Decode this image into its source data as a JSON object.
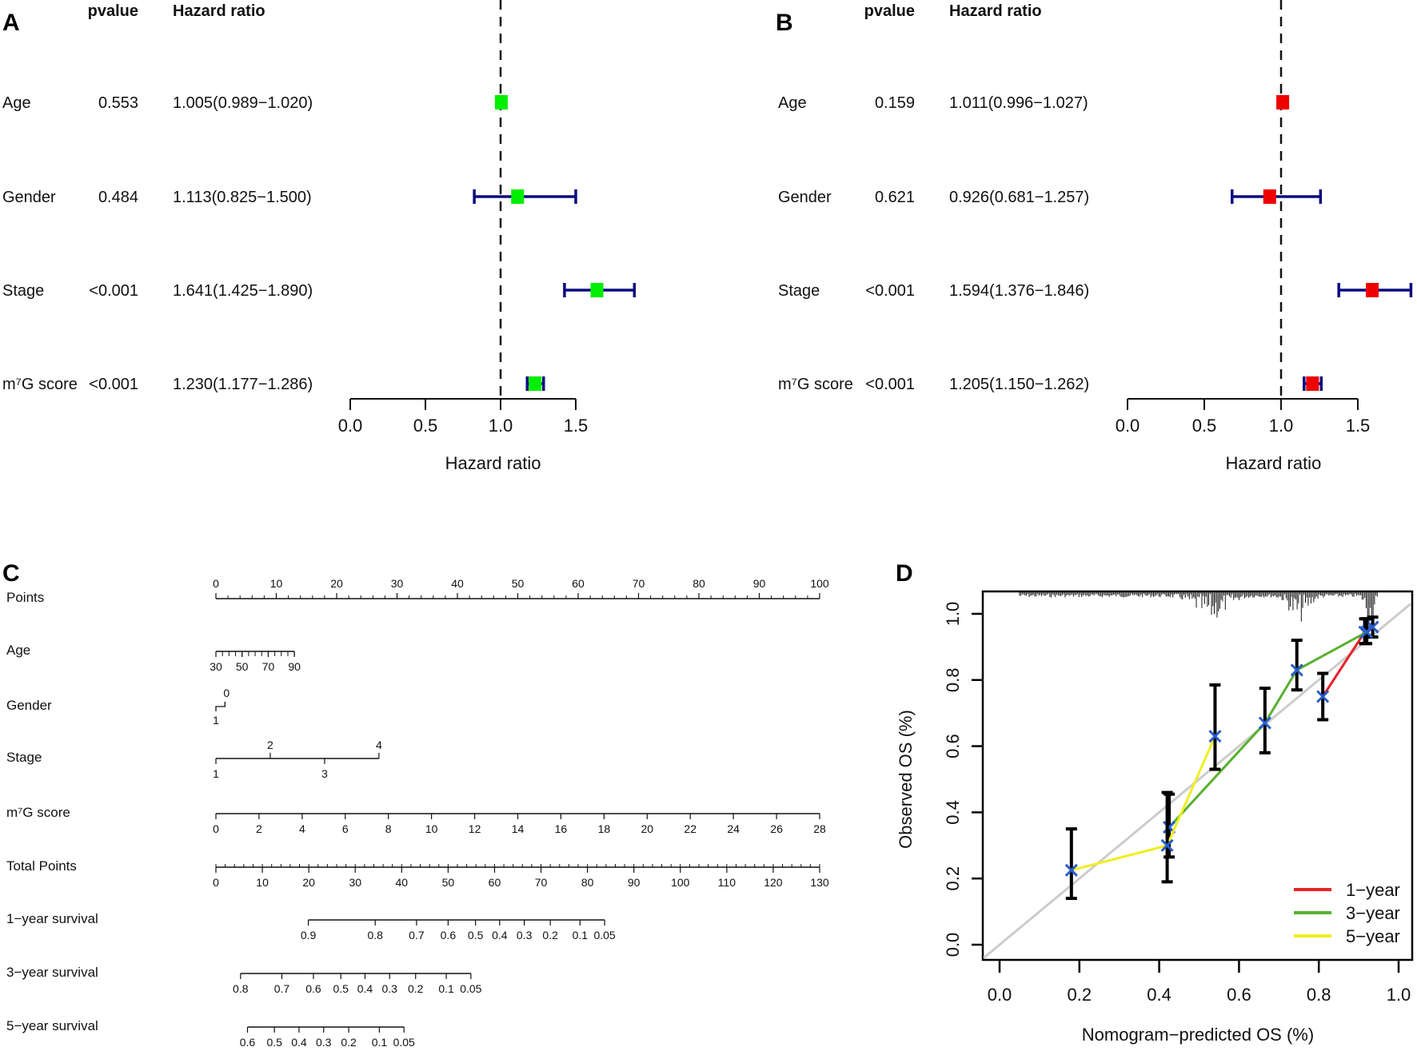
{
  "chart_data": [
    {
      "panel": "A",
      "type": "forest",
      "headers": {
        "pvalue": "pvalue",
        "hr": "Hazard ratio"
      },
      "xlabel": "Hazard ratio",
      "xticks": [
        "0.0",
        "0.5",
        "1.0",
        "1.5"
      ],
      "xlim": [
        0,
        1.5
      ],
      "reference": 1.0,
      "marker_color": "#00ee00",
      "ci_color": "#0a0a80",
      "rows": [
        {
          "label": "Age",
          "pvalue": "0.553",
          "hr_text": "1.005(0.989−1.020)",
          "hr": 1.005,
          "lo": 0.989,
          "hi": 1.02
        },
        {
          "label": "Gender",
          "pvalue": "0.484",
          "hr_text": "1.113(0.825−1.500)",
          "hr": 1.113,
          "lo": 0.825,
          "hi": 1.5
        },
        {
          "label": "Stage",
          "pvalue": "<0.001",
          "hr_text": "1.641(1.425−1.890)",
          "hr": 1.641,
          "lo": 1.425,
          "hi": 1.89
        },
        {
          "label": "m⁷G score",
          "pvalue": "<0.001",
          "hr_text": "1.230(1.177−1.286)",
          "hr": 1.23,
          "lo": 1.177,
          "hi": 1.286
        }
      ]
    },
    {
      "panel": "B",
      "type": "forest",
      "headers": {
        "pvalue": "pvalue",
        "hr": "Hazard ratio"
      },
      "xlabel": "Hazard ratio",
      "xticks": [
        "0.0",
        "0.5",
        "1.0",
        "1.5"
      ],
      "xlim": [
        0,
        1.5
      ],
      "reference": 1.0,
      "marker_color": "#ee0000",
      "ci_color": "#0a0a80",
      "rows": [
        {
          "label": "Age",
          "pvalue": "0.159",
          "hr_text": "1.011(0.996−1.027)",
          "hr": 1.011,
          "lo": 0.996,
          "hi": 1.027
        },
        {
          "label": "Gender",
          "pvalue": "0.621",
          "hr_text": "0.926(0.681−1.257)",
          "hr": 0.926,
          "lo": 0.681,
          "hi": 1.257
        },
        {
          "label": "Stage",
          "pvalue": "<0.001",
          "hr_text": "1.594(1.376−1.846)",
          "hr": 1.594,
          "lo": 1.376,
          "hi": 1.846
        },
        {
          "label": "m⁷G score",
          "pvalue": "<0.001",
          "hr_text": "1.205(1.150−1.262)",
          "hr": 1.205,
          "lo": 1.15,
          "hi": 1.262
        }
      ]
    },
    {
      "panel": "C",
      "type": "nomogram",
      "points_range": [
        0,
        100
      ],
      "total_points_range": [
        0,
        130
      ],
      "scales": [
        {
          "label": "Points",
          "kind": "points",
          "ticks": [
            {
              "v": "0",
              "p": 0
            },
            {
              "v": "10",
              "p": 10
            },
            {
              "v": "20",
              "p": 20
            },
            {
              "v": "30",
              "p": 30
            },
            {
              "v": "40",
              "p": 40
            },
            {
              "v": "50",
              "p": 50
            },
            {
              "v": "60",
              "p": 60
            },
            {
              "v": "70",
              "p": 70
            },
            {
              "v": "80",
              "p": 80
            },
            {
              "v": "90",
              "p": 90
            },
            {
              "v": "100",
              "p": 100
            }
          ]
        },
        {
          "label": "Age",
          "kind": "points",
          "ticks": [
            {
              "v": "30",
              "p": 0
            },
            {
              "v": "50",
              "p": 4.33
            },
            {
              "v": "70",
              "p": 8.67
            },
            {
              "v": "90",
              "p": 13
            }
          ]
        },
        {
          "label": "Gender",
          "kind": "gender",
          "ticks": [
            {
              "v": "1",
              "p": 0
            },
            {
              "v": "0",
              "p": 1.5
            }
          ]
        },
        {
          "label": "Stage",
          "kind": "stage",
          "ticks": [
            {
              "v": "1",
              "p": 0
            },
            {
              "v": "2",
              "p": 9
            },
            {
              "v": "3",
              "p": 18
            },
            {
              "v": "4",
              "p": 27
            }
          ]
        },
        {
          "label": "m⁷G score",
          "kind": "points",
          "ticks": [
            {
              "v": "0",
              "p": 0
            },
            {
              "v": "2",
              "p": 7.14
            },
            {
              "v": "4",
              "p": 14.29
            },
            {
              "v": "6",
              "p": 21.43
            },
            {
              "v": "8",
              "p": 28.57
            },
            {
              "v": "10",
              "p": 35.71
            },
            {
              "v": "12",
              "p": 42.86
            },
            {
              "v": "14",
              "p": 50
            },
            {
              "v": "16",
              "p": 57.14
            },
            {
              "v": "18",
              "p": 64.29
            },
            {
              "v": "20",
              "p": 71.43
            },
            {
              "v": "22",
              "p": 78.57
            },
            {
              "v": "24",
              "p": 85.71
            },
            {
              "v": "26",
              "p": 92.86
            },
            {
              "v": "28",
              "p": 100
            }
          ]
        },
        {
          "label": "Total Points",
          "kind": "total",
          "ticks": [
            {
              "v": "0",
              "t": 0
            },
            {
              "v": "10",
              "t": 10
            },
            {
              "v": "20",
              "t": 20
            },
            {
              "v": "30",
              "t": 30
            },
            {
              "v": "40",
              "t": 40
            },
            {
              "v": "50",
              "t": 50
            },
            {
              "v": "60",
              "t": 60
            },
            {
              "v": "70",
              "t": 70
            },
            {
              "v": "80",
              "t": 80
            },
            {
              "v": "90",
              "t": 90
            },
            {
              "v": "100",
              "t": 100
            },
            {
              "v": "110",
              "t": 110
            },
            {
              "v": "120",
              "t": 120
            },
            {
              "v": "130",
              "t": 130
            }
          ]
        },
        {
          "label": "1−year survival",
          "kind": "total",
          "ticks": [
            {
              "v": "0.9",
              "t": 19.9
            },
            {
              "v": "0.8",
              "t": 34.3
            },
            {
              "v": "0.7",
              "t": 43.2
            },
            {
              "v": "0.6",
              "t": 50
            },
            {
              "v": "0.5",
              "t": 55.9
            },
            {
              "v": "0.4",
              "t": 61.1
            },
            {
              "v": "0.3",
              "t": 66.4
            },
            {
              "v": "0.2",
              "t": 72
            },
            {
              "v": "0.1",
              "t": 78.4
            },
            {
              "v": "0.05",
              "t": 83.7
            }
          ]
        },
        {
          "label": "3−year survival",
          "kind": "total",
          "ticks": [
            {
              "v": "0.8",
              "t": 5.3
            },
            {
              "v": "0.7",
              "t": 14.2
            },
            {
              "v": "0.6",
              "t": 21
            },
            {
              "v": "0.5",
              "t": 26.9
            },
            {
              "v": "0.4",
              "t": 32.1
            },
            {
              "v": "0.3",
              "t": 37.4
            },
            {
              "v": "0.2",
              "t": 43
            },
            {
              "v": "0.1",
              "t": 49.6
            },
            {
              "v": "0.05",
              "t": 54.9
            }
          ]
        },
        {
          "label": "5−year survival",
          "kind": "total",
          "ticks": [
            {
              "v": "0.6",
              "t": 6.8
            },
            {
              "v": "0.5",
              "t": 12.6
            },
            {
              "v": "0.4",
              "t": 17.9
            },
            {
              "v": "0.3",
              "t": 23.2
            },
            {
              "v": "0.2",
              "t": 28.6
            },
            {
              "v": "0.1",
              "t": 35.2
            },
            {
              "v": "0.05",
              "t": 40.5
            }
          ]
        }
      ]
    },
    {
      "panel": "D",
      "type": "line",
      "xlabel": "Nomogram−predicted OS (%)",
      "ylabel": "Observed OS (%)",
      "xlim": [
        0,
        1
      ],
      "ylim": [
        0,
        1
      ],
      "xticks": [
        "0.0",
        "0.2",
        "0.4",
        "0.6",
        "0.8",
        "1.0"
      ],
      "yticks": [
        "0.0",
        "0.2",
        "0.4",
        "0.6",
        "0.8",
        "1.0"
      ],
      "legend_position": "bottom-right",
      "diagonal_color": "#cccccc",
      "marker_color": "#2a5cc8",
      "series": [
        {
          "name": "1−year",
          "color": "#e8222a",
          "x": [
            0.81,
            0.915,
            0.935
          ],
          "y": [
            0.75,
            0.945,
            0.96
          ],
          "lo": [
            0.68,
            0.91,
            0.93
          ],
          "hi": [
            0.82,
            0.985,
            0.99
          ]
        },
        {
          "name": "3−year",
          "color": "#58b030",
          "x": [
            0.425,
            0.665,
            0.745,
            0.92
          ],
          "y": [
            0.355,
            0.67,
            0.83,
            0.945
          ],
          "lo": [
            0.265,
            0.58,
            0.77,
            0.91
          ],
          "hi": [
            0.455,
            0.775,
            0.92,
            0.985
          ]
        },
        {
          "name": "5−year",
          "color": "#f0ee20",
          "x": [
            0.18,
            0.42,
            0.54
          ],
          "y": [
            0.225,
            0.3,
            0.63
          ],
          "lo": [
            0.14,
            0.19,
            0.53
          ],
          "hi": [
            0.35,
            0.46,
            0.785
          ]
        }
      ]
    }
  ]
}
